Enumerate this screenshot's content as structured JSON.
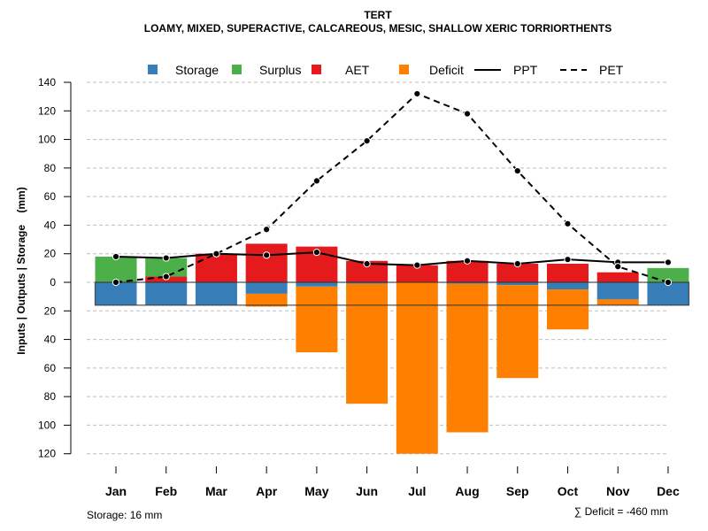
{
  "chart_data": {
    "type": "bar",
    "title": "TERT",
    "subtitle": "LOAMY, MIXED, SUPERACTIVE, CALCAREOUS, MESIC, SHALLOW XERIC TORRIORTHENTS",
    "xlabel": "",
    "ylabel": "Inputs | Outputs | Storage    (mm)",
    "ylim": [
      -120,
      140
    ],
    "yticks": [
      140,
      120,
      100,
      80,
      60,
      40,
      20,
      0,
      20,
      40,
      60,
      80,
      100,
      120
    ],
    "ytick_values": [
      140,
      120,
      100,
      80,
      60,
      40,
      20,
      0,
      -20,
      -40,
      -60,
      -80,
      -100,
      -120
    ],
    "grid": true,
    "legend_position": "top",
    "categories": [
      "Jan",
      "Feb",
      "Mar",
      "Apr",
      "May",
      "Jun",
      "Jul",
      "Aug",
      "Sep",
      "Oct",
      "Nov",
      "Dec"
    ],
    "legend": [
      {
        "name": "Storage",
        "kind": "box",
        "color": "#377EB8"
      },
      {
        "name": "Surplus",
        "kind": "box",
        "color": "#4DAF4A"
      },
      {
        "name": "AET",
        "kind": "box",
        "color": "#E41A1C"
      },
      {
        "name": "Deficit",
        "kind": "box",
        "color": "#FF7F00"
      },
      {
        "name": "PPT",
        "kind": "solid-line",
        "color": "#000000"
      },
      {
        "name": "PET",
        "kind": "dashed-line",
        "color": "#000000"
      }
    ],
    "series": [
      {
        "name": "AET",
        "values": [
          0,
          4,
          20,
          27,
          25,
          15,
          12,
          15,
          13,
          13,
          7,
          0
        ]
      },
      {
        "name": "Surplus",
        "values": [
          18,
          13,
          0,
          0,
          0,
          0,
          0,
          0,
          0,
          0,
          0,
          10
        ]
      },
      {
        "name": "Storage",
        "values": [
          16,
          16,
          16,
          8,
          3,
          1,
          0,
          1,
          2,
          5,
          12,
          16
        ]
      },
      {
        "name": "Deficit",
        "values": [
          0,
          0,
          0,
          9,
          46,
          84,
          120,
          104,
          65,
          28,
          4,
          0
        ]
      },
      {
        "name": "PPT",
        "values": [
          18,
          17,
          20,
          19,
          21,
          13,
          12,
          15,
          13,
          16,
          14,
          14
        ]
      },
      {
        "name": "PET",
        "values": [
          0,
          4,
          20,
          37,
          71,
          99,
          132,
          118,
          78,
          41,
          11,
          0
        ]
      }
    ],
    "storage_capacity": 16,
    "colors": {
      "storage": "#377EB8",
      "surplus": "#4DAF4A",
      "aet": "#E41A1C",
      "deficit": "#FF7F00",
      "grid": "#BEBEBE"
    }
  },
  "footer": {
    "storage_note": "Storage: 16 mm",
    "deficit_sum": "∑ Deficit = -460 mm"
  }
}
